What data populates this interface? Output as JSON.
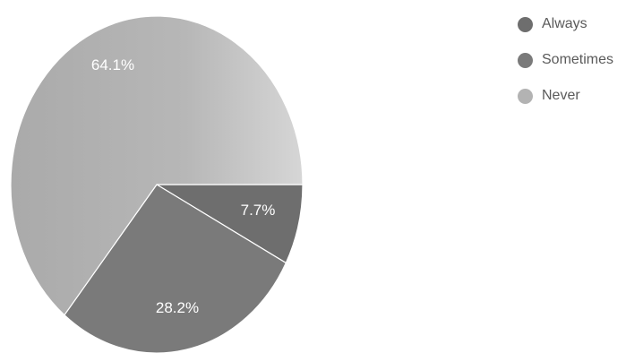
{
  "chart_data": {
    "type": "pie",
    "title": "",
    "slices": [
      {
        "label": "Always",
        "value": 7.7,
        "display": "7.7%",
        "color": "#6e6e6e"
      },
      {
        "label": "Sometimes",
        "value": 28.2,
        "display": "28.2%",
        "color": "#7a7a7a"
      },
      {
        "label": "Never",
        "value": 64.1,
        "display": "64.1%",
        "color": "#b3b3b3"
      }
    ],
    "legend": {
      "position": "top-right",
      "items": [
        "Always",
        "Sometimes",
        "Never"
      ]
    }
  }
}
